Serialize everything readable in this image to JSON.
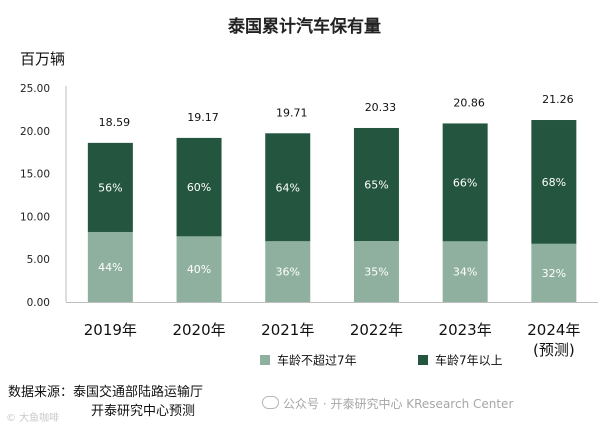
{
  "chart_data": {
    "type": "bar",
    "stacked": true,
    "title": "泰国累计汽车保有量",
    "unit": "百万辆",
    "categories": [
      [
        "2019年"
      ],
      [
        "2020年"
      ],
      [
        "2021年"
      ],
      [
        "2022年"
      ],
      [
        "2023年"
      ],
      [
        "2024年",
        "(预测)"
      ]
    ],
    "totals": [
      18.59,
      19.17,
      19.71,
      20.33,
      20.86,
      21.26
    ],
    "series": [
      {
        "name": "车龄不超过7年",
        "color": "#8fb09f",
        "labels": [
          "44%",
          "40%",
          "36%",
          "35%",
          "34%",
          "32%"
        ],
        "values": [
          8.18,
          7.67,
          7.1,
          7.12,
          7.09,
          6.8
        ]
      },
      {
        "name": "车龄7年以上",
        "color": "#24553f",
        "labels": [
          "56%",
          "60%",
          "64%",
          "65%",
          "66%",
          "68%"
        ],
        "values": [
          10.41,
          11.5,
          12.61,
          13.21,
          13.77,
          14.46
        ]
      }
    ],
    "y_ticks": [
      "0.00",
      "5.00",
      "10.00",
      "15.00",
      "20.00",
      "25.00"
    ],
    "ylim": [
      0,
      25
    ],
    "legend_position": "bottom-center",
    "grid": false
  },
  "source": {
    "label": "数据来源：",
    "line1": "泰国交通部陆路运输厅",
    "line2": "开泰研究中心预测"
  },
  "watermark": {
    "left": "© 大鱼咖啡",
    "right": "公众号 · 开泰研究中心 KResearch Center"
  }
}
